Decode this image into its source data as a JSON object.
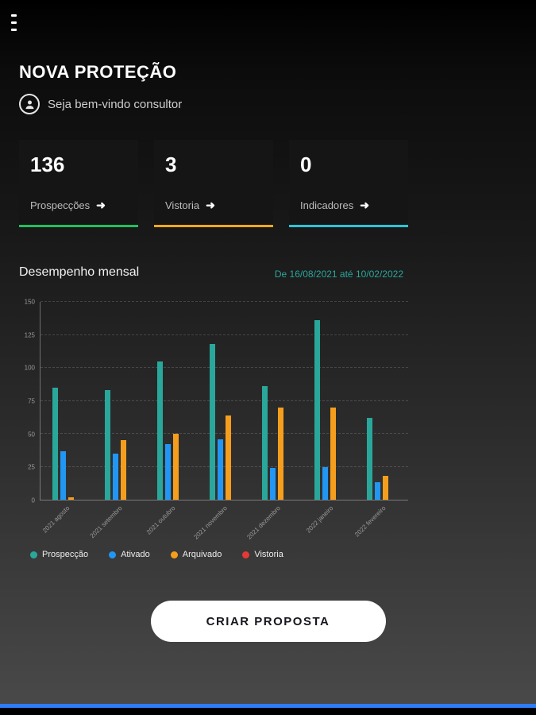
{
  "icons": {
    "menu": "hamburger-icon",
    "avatar": "person-circle-icon",
    "arrow_right": "➜"
  },
  "header": {
    "title": "NOVA PROTEÇÃO",
    "welcome_text": "Seja bem-vindo consultor"
  },
  "stats": {
    "cards": [
      {
        "value": "136",
        "label": "Prospecções",
        "accent": "#1fc05e"
      },
      {
        "value": "3",
        "label": "Vistoria",
        "accent": "#f5a81c"
      },
      {
        "value": "0",
        "label": "Indicadores",
        "accent": "#29c5d6"
      }
    ]
  },
  "performance": {
    "title": "Desempenho mensal",
    "date_range": "De 16/08/2021 até 10/02/2022",
    "date_color": "#2aa79b"
  },
  "chart_data": {
    "type": "bar",
    "title": "Desempenho mensal",
    "categories": [
      "2021 agosto",
      "2021 setembro",
      "2021 outubro",
      "2021 novembro",
      "2021 dezembro",
      "2022 janeiro",
      "2022 fevereiro"
    ],
    "series": [
      {
        "name": "Prospecção",
        "color": "#2aa79b",
        "values": [
          85,
          83,
          105,
          118,
          86,
          136,
          62
        ]
      },
      {
        "name": "Ativado",
        "color": "#2196f3",
        "values": [
          37,
          35,
          42,
          46,
          24,
          25,
          13
        ]
      },
      {
        "name": "Arquivado",
        "color": "#f59e1d",
        "values": [
          2,
          45,
          50,
          64,
          70,
          70,
          18
        ]
      },
      {
        "name": "Vistoria",
        "color": "#e53935",
        "values": [
          0,
          0,
          0,
          0,
          0,
          0,
          0
        ]
      }
    ],
    "ylim": [
      0,
      150
    ],
    "ytick_step": 25,
    "grid": true,
    "legend_position": "bottom"
  },
  "cta": {
    "label": "CRIAR PROPOSTA"
  },
  "footer": {
    "accent_color": "#2e7cf6"
  }
}
